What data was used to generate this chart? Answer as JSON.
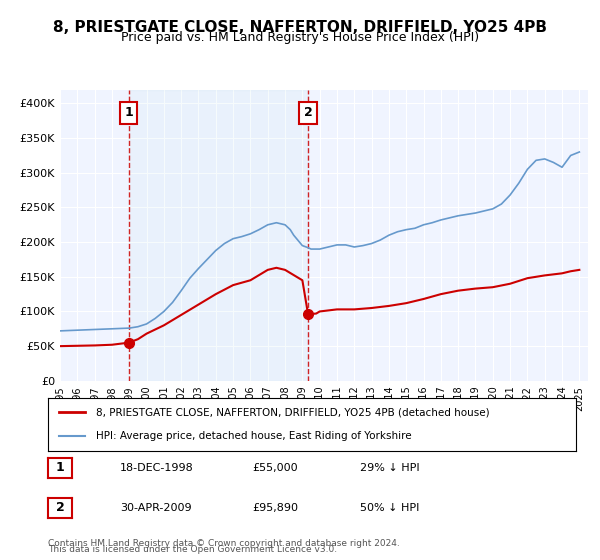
{
  "title": "8, PRIESTGATE CLOSE, NAFFERTON, DRIFFIELD, YO25 4PB",
  "subtitle": "Price paid vs. HM Land Registry's House Price Index (HPI)",
  "title_fontsize": 11,
  "subtitle_fontsize": 9,
  "background_color": "#ffffff",
  "plot_bg_color": "#f0f4ff",
  "grid_color": "#ffffff",
  "red_line_color": "#cc0000",
  "blue_line_color": "#6699cc",
  "marker_color": "#cc0000",
  "dashed_line_color": "#cc0000",
  "annotation_box_color": "#cc0000",
  "xlim": [
    1995.0,
    2025.5
  ],
  "ylim": [
    0,
    420000
  ],
  "ytick_values": [
    0,
    50000,
    100000,
    150000,
    200000,
    250000,
    300000,
    350000,
    400000
  ],
  "ytick_labels": [
    "£0",
    "£50K",
    "£100K",
    "£150K",
    "£200K",
    "£250K",
    "£300K",
    "£350K",
    "£400K"
  ],
  "xtick_values": [
    1995,
    1996,
    1997,
    1998,
    1999,
    2000,
    2001,
    2002,
    2003,
    2004,
    2005,
    2006,
    2007,
    2008,
    2009,
    2010,
    2011,
    2012,
    2013,
    2014,
    2015,
    2016,
    2017,
    2018,
    2019,
    2020,
    2021,
    2022,
    2023,
    2024,
    2025
  ],
  "sale1_x": 1998.97,
  "sale1_y": 55000,
  "sale1_label": "1",
  "sale1_date": "18-DEC-1998",
  "sale1_price": "£55,000",
  "sale1_hpi": "29% ↓ HPI",
  "sale2_x": 2009.33,
  "sale2_y": 95890,
  "sale2_label": "2",
  "sale2_date": "30-APR-2009",
  "sale2_price": "£95,890",
  "sale2_hpi": "50% ↓ HPI",
  "legend_line1": "8, PRIESTGATE CLOSE, NAFFERTON, DRIFFIELD, YO25 4PB (detached house)",
  "legend_line2": "HPI: Average price, detached house, East Riding of Yorkshire",
  "footer_line1": "Contains HM Land Registry data © Crown copyright and database right 2024.",
  "footer_line2": "This data is licensed under the Open Government Licence v3.0.",
  "hpi_x": [
    1995.0,
    1995.5,
    1996.0,
    1996.5,
    1997.0,
    1997.5,
    1998.0,
    1998.5,
    1999.0,
    1999.5,
    2000.0,
    2000.5,
    2001.0,
    2001.5,
    2002.0,
    2002.5,
    2003.0,
    2003.5,
    2004.0,
    2004.5,
    2005.0,
    2005.5,
    2006.0,
    2006.5,
    2007.0,
    2007.5,
    2008.0,
    2008.3,
    2008.5,
    2009.0,
    2009.33,
    2009.5,
    2010.0,
    2010.5,
    2011.0,
    2011.5,
    2012.0,
    2012.5,
    2013.0,
    2013.5,
    2014.0,
    2014.5,
    2015.0,
    2015.5,
    2016.0,
    2016.5,
    2017.0,
    2017.5,
    2018.0,
    2018.5,
    2019.0,
    2019.5,
    2020.0,
    2020.5,
    2021.0,
    2021.5,
    2022.0,
    2022.5,
    2023.0,
    2023.5,
    2024.0,
    2024.5,
    2025.0
  ],
  "hpi_y": [
    72000,
    72500,
    73000,
    73500,
    74000,
    74500,
    75000,
    75500,
    76000,
    78000,
    82000,
    90000,
    100000,
    113000,
    130000,
    148000,
    162000,
    175000,
    188000,
    198000,
    205000,
    208000,
    212000,
    218000,
    225000,
    228000,
    225000,
    218000,
    210000,
    195000,
    192000,
    190000,
    190000,
    193000,
    196000,
    196000,
    193000,
    195000,
    198000,
    203000,
    210000,
    215000,
    218000,
    220000,
    225000,
    228000,
    232000,
    235000,
    238000,
    240000,
    242000,
    245000,
    248000,
    255000,
    268000,
    285000,
    305000,
    318000,
    320000,
    315000,
    308000,
    325000,
    330000
  ],
  "house_x": [
    1995.0,
    1996.0,
    1997.0,
    1998.0,
    1998.97,
    1999.5,
    2000.0,
    2001.0,
    2002.0,
    2003.0,
    2004.0,
    2005.0,
    2006.0,
    2007.0,
    2007.5,
    2008.0,
    2009.0,
    2009.33,
    2009.8,
    2010.0,
    2011.0,
    2012.0,
    2013.0,
    2014.0,
    2015.0,
    2016.0,
    2017.0,
    2018.0,
    2019.0,
    2020.0,
    2021.0,
    2022.0,
    2023.0,
    2024.0,
    2024.5,
    2025.0
  ],
  "house_y": [
    50000,
    50500,
    51000,
    52000,
    55000,
    60000,
    68000,
    80000,
    95000,
    110000,
    125000,
    138000,
    145000,
    160000,
    163000,
    160000,
    145000,
    95890,
    97000,
    100000,
    103000,
    103000,
    105000,
    108000,
    112000,
    118000,
    125000,
    130000,
    133000,
    135000,
    140000,
    148000,
    152000,
    155000,
    158000,
    160000
  ]
}
